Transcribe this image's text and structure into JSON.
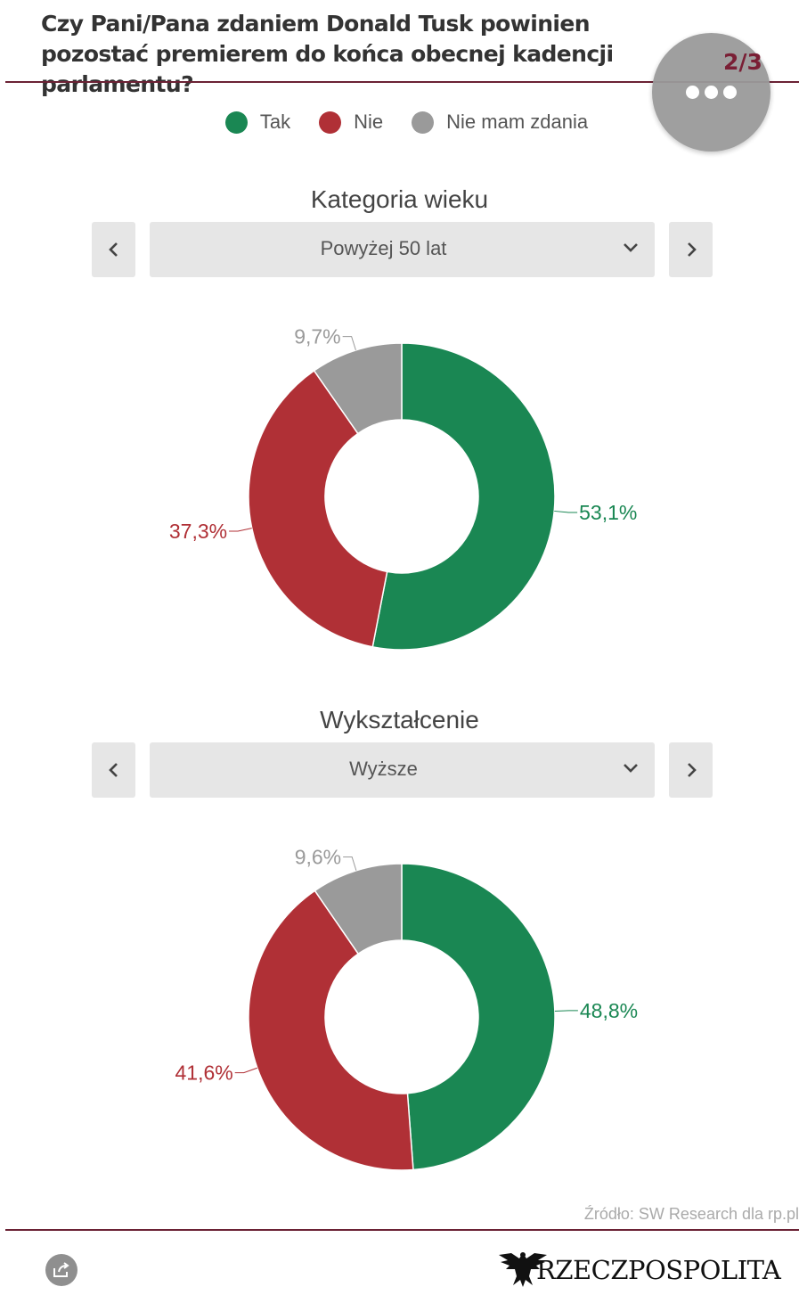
{
  "header": {
    "title": "Czy Pani/Pana zdaniem Donald Tusk powinien pozostać premierem do końca obecnej kadencji parlamentu?",
    "page_counter": "2/3"
  },
  "legend": [
    {
      "label": "Tak",
      "color": "#1a8753"
    },
    {
      "label": "Nie",
      "color": "#b03036"
    },
    {
      "label": "Nie mam zdania",
      "color": "#9a9a9a"
    }
  ],
  "sections": [
    {
      "title": "Kategoria wieku",
      "selected": "Powyżej 50 lat"
    },
    {
      "title": "Wykształcenie",
      "selected": "Wyższe"
    }
  ],
  "chart_data": [
    {
      "type": "pie",
      "title": "Kategoria wieku",
      "subtitle": "Powyżej 50 lat",
      "categories": [
        "Tak",
        "Nie",
        "Nie mam zdania"
      ],
      "values": [
        53.1,
        37.3,
        9.7
      ],
      "labels": [
        "53,1%",
        "37,3%",
        "9,7%"
      ],
      "colors": [
        "#1a8753",
        "#b03036",
        "#9a9a9a"
      ]
    },
    {
      "type": "pie",
      "title": "Wykształcenie",
      "subtitle": "Wyższe",
      "categories": [
        "Tak",
        "Nie",
        "Nie mam zdania"
      ],
      "values": [
        48.8,
        41.6,
        9.6
      ],
      "labels": [
        "48,8%",
        "41,6%",
        "9,6%"
      ],
      "colors": [
        "#1a8753",
        "#b03036",
        "#9a9a9a"
      ]
    }
  ],
  "footer": {
    "source": "Źródło: SW Research dla rp.pl",
    "logo": "RZECZPOSPOLITA",
    "share_icon": "share-icon",
    "more_icon": "more-dots-icon"
  }
}
